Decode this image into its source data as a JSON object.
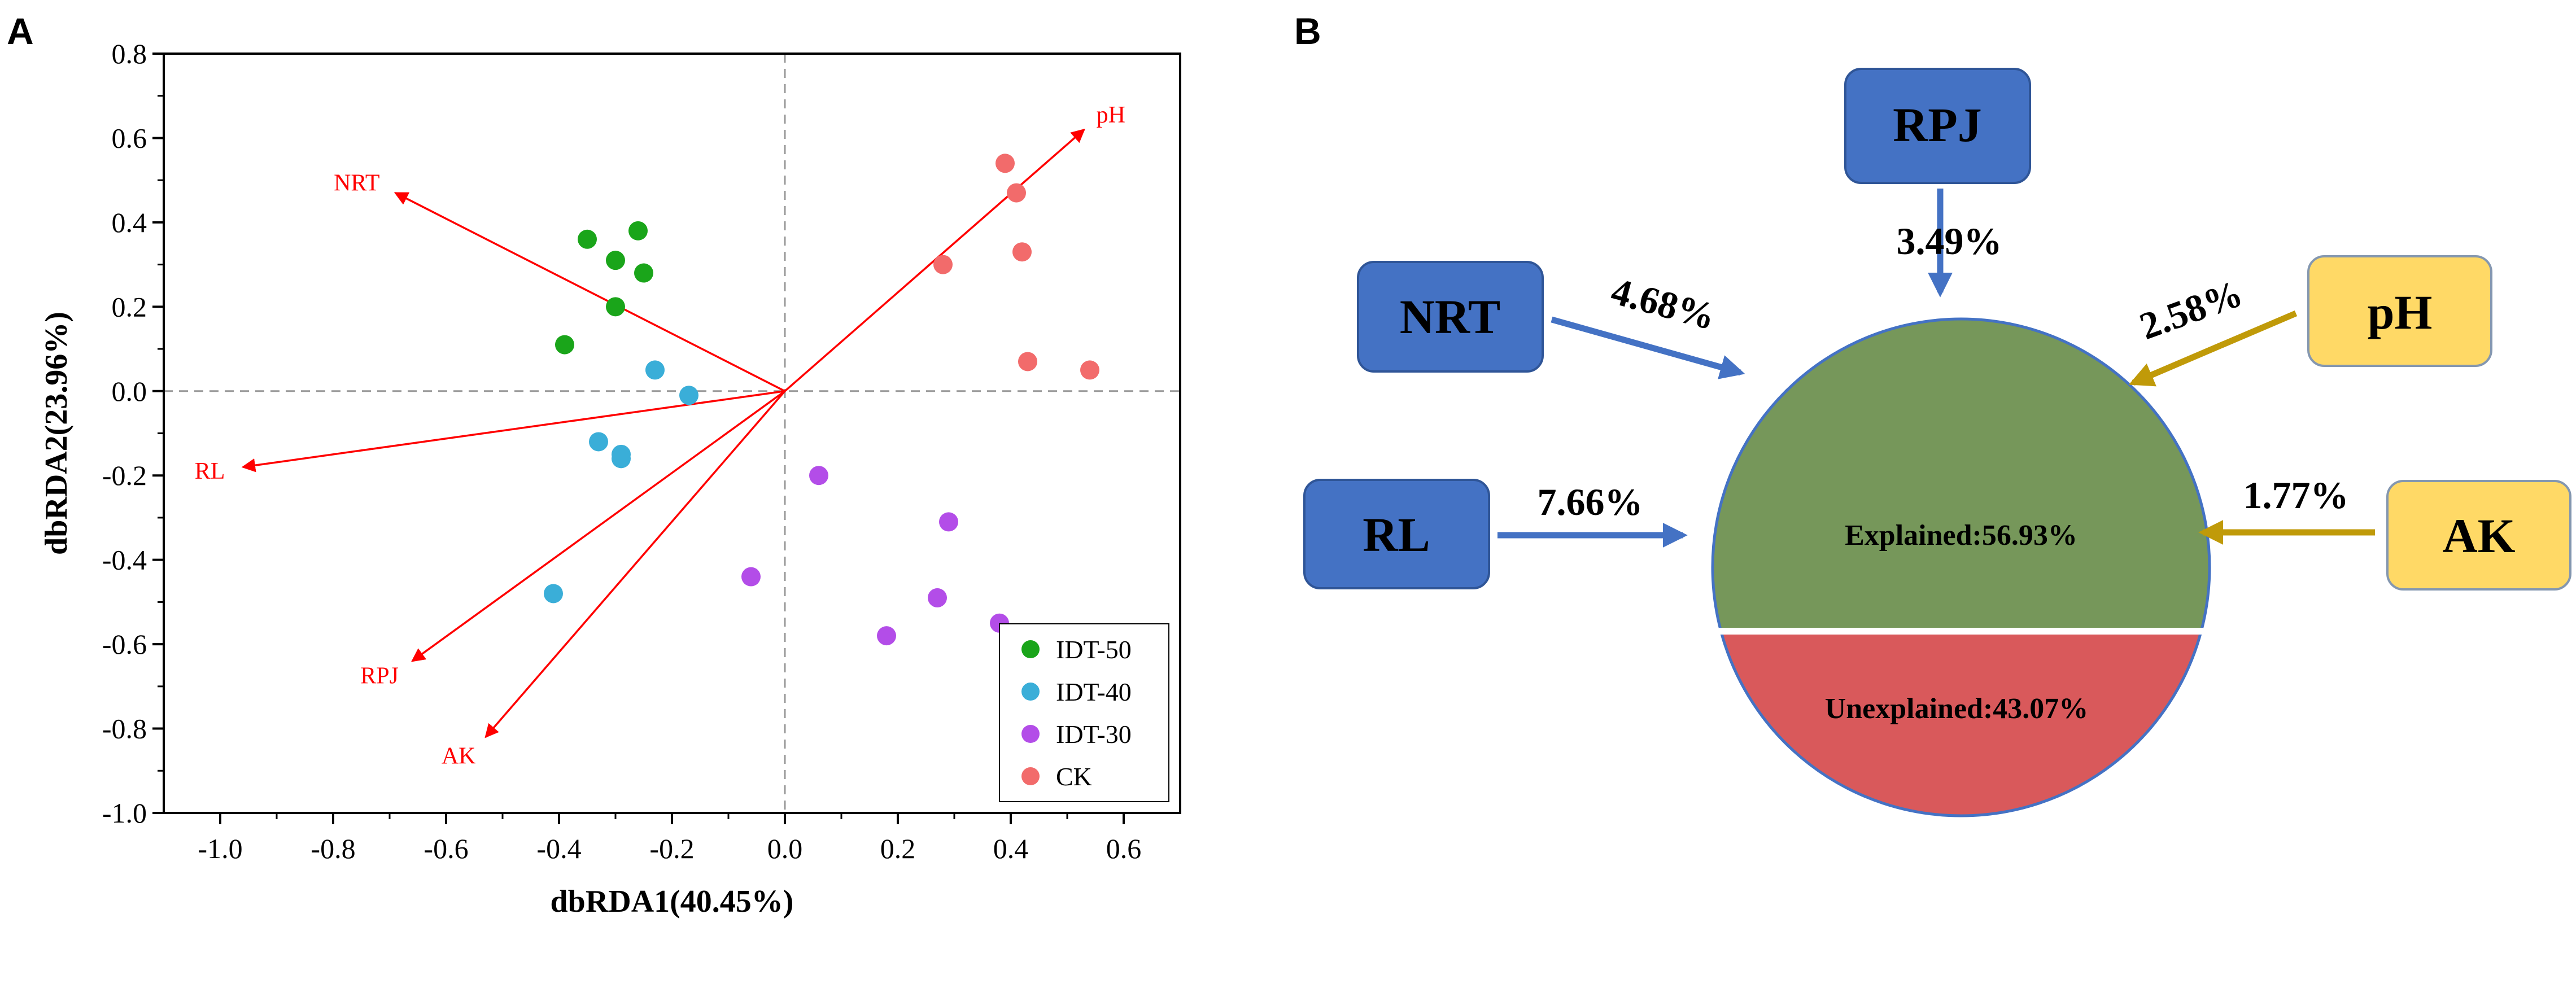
{
  "panels": {
    "a_label": "A",
    "b_label": "B"
  },
  "chart_data": [
    {
      "type": "scatter",
      "title": "",
      "xlabel": "dbRDA1(40.45%)",
      "ylabel": "dbRDA2(23.96%)",
      "xlim": [
        -1.1,
        0.7
      ],
      "ylim": [
        -1.0,
        0.8
      ],
      "xticks": [
        -1.0,
        -0.8,
        -0.6,
        -0.4,
        -0.2,
        0.0,
        0.2,
        0.4,
        0.6
      ],
      "xtick_labels": [
        "-1.0",
        "-0.8",
        "-0.6",
        "-0.4",
        "-0.2",
        "0.0",
        "0.2",
        "0.4",
        "0.6"
      ],
      "yticks": [
        -1.0,
        -0.8,
        -0.6,
        -0.4,
        -0.2,
        0.0,
        0.2,
        0.4,
        0.6,
        0.8
      ],
      "ytick_labels": [
        "-1.0",
        "-0.8",
        "-0.6",
        "-0.4",
        "-0.2",
        "0.0",
        "0.2",
        "0.4",
        "0.6",
        "0.8"
      ],
      "reference_lines": {
        "x": 0,
        "y": 0,
        "style": "dashed"
      },
      "legend_position": "bottom-right",
      "series": [
        {
          "name": "IDT-50",
          "color": "#1aa51a",
          "points": [
            [
              -0.26,
              0.38
            ],
            [
              -0.35,
              0.36
            ],
            [
              -0.3,
              0.31
            ],
            [
              -0.25,
              0.28
            ],
            [
              -0.3,
              0.2
            ],
            [
              -0.39,
              0.11
            ]
          ]
        },
        {
          "name": "IDT-40",
          "color": "#3aaed8",
          "points": [
            [
              -0.23,
              0.05
            ],
            [
              -0.17,
              -0.01
            ],
            [
              -0.33,
              -0.12
            ],
            [
              -0.29,
              -0.15
            ],
            [
              -0.29,
              -0.16
            ],
            [
              -0.41,
              -0.48
            ]
          ]
        },
        {
          "name": "IDT-30",
          "color": "#b34de8",
          "points": [
            [
              0.06,
              -0.2
            ],
            [
              0.29,
              -0.31
            ],
            [
              -0.06,
              -0.44
            ],
            [
              0.27,
              -0.49
            ],
            [
              0.38,
              -0.55
            ],
            [
              0.18,
              -0.58
            ]
          ]
        },
        {
          "name": "CK",
          "color": "#f26b6b",
          "points": [
            [
              0.39,
              0.54
            ],
            [
              0.41,
              0.47
            ],
            [
              0.42,
              0.33
            ],
            [
              0.28,
              0.3
            ],
            [
              0.43,
              0.07
            ],
            [
              0.54,
              0.05
            ]
          ]
        }
      ],
      "vectors": [
        {
          "name": "pH",
          "x": 0.53,
          "y": 0.62
        },
        {
          "name": "NRT",
          "x": -0.69,
          "y": 0.47
        },
        {
          "name": "RL",
          "x": -0.96,
          "y": -0.18
        },
        {
          "name": "RPJ",
          "x": -0.66,
          "y": -0.64
        },
        {
          "name": "AK",
          "x": -0.53,
          "y": -0.82
        }
      ],
      "vector_color": "#ff0000"
    },
    {
      "type": "pie",
      "title": "",
      "slices": [
        {
          "label": "Explained:56.93%",
          "value": 56.93,
          "color": "#76975a"
        },
        {
          "label": "Unexplained:43.07%",
          "value": 43.07,
          "color": "#d9595b"
        }
      ],
      "factors": [
        {
          "name": "RPJ",
          "contribution": "3.49%",
          "color": "#4472c4"
        },
        {
          "name": "NRT",
          "contribution": "4.68%",
          "color": "#4472c4"
        },
        {
          "name": "RL",
          "contribution": "7.66%",
          "color": "#4472c4"
        },
        {
          "name": "pH",
          "contribution": "2.58%",
          "color": "#ffd966"
        },
        {
          "name": "AK",
          "contribution": "1.77%",
          "color": "#ffd966"
        }
      ],
      "arrow_colors": {
        "blue": "#4472c4",
        "gold": "#c09a09"
      }
    }
  ]
}
